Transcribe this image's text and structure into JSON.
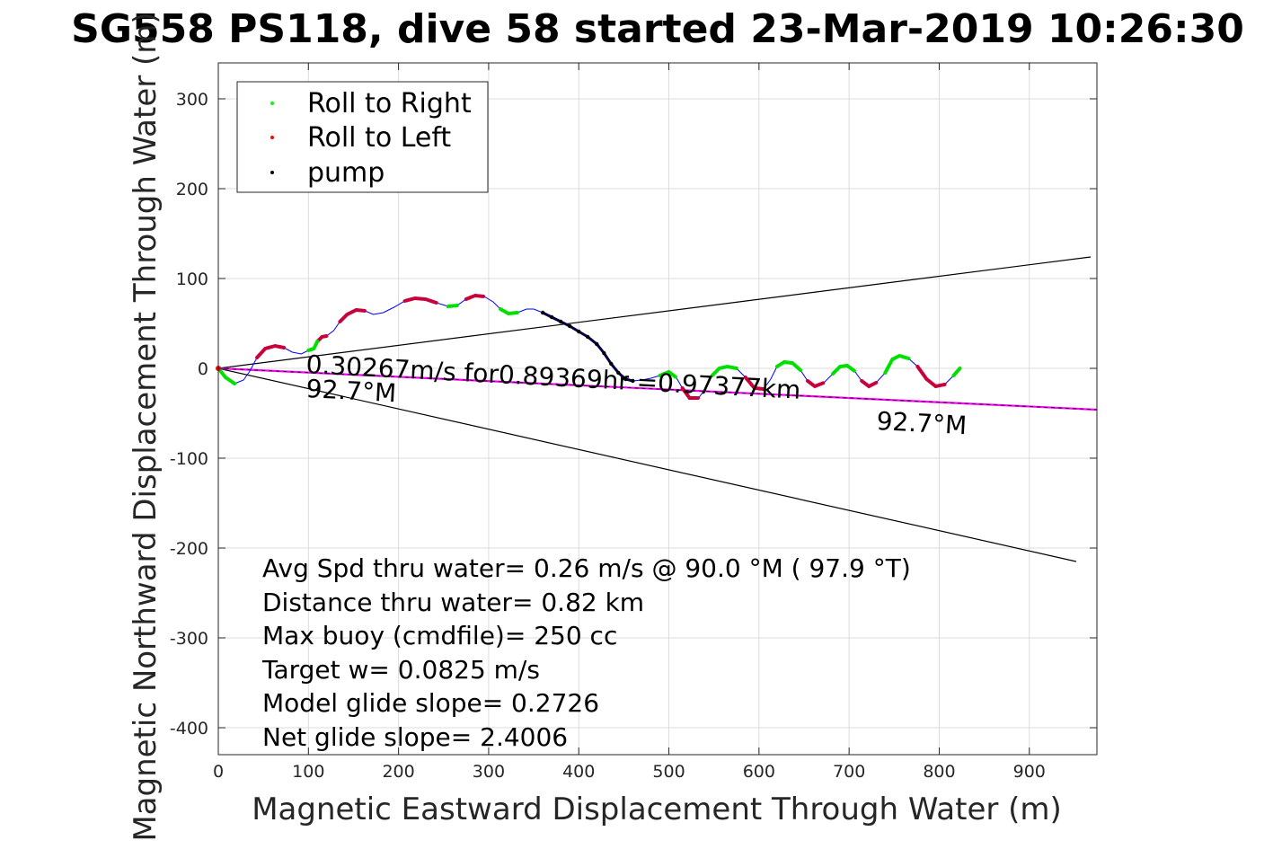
{
  "title": "SG558 PS118, dive 58 started 23-Mar-2019 10:26:30",
  "chart_data": {
    "type": "scatter",
    "title": "SG558 PS118, dive 58 started 23-Mar-2019 10:26:30",
    "xlabel": "Magnetic Eastward Displacement Through Water (m)",
    "ylabel": "Magnetic Northward Displacement Through Water (m)",
    "xlim": [
      0,
      975
    ],
    "ylim": [
      -430,
      340
    ],
    "xticks": [
      "0",
      "100",
      "200",
      "300",
      "400",
      "500",
      "600",
      "700",
      "800",
      "900"
    ],
    "yticks": [
      "300",
      "200",
      "100",
      "0",
      "-100",
      "-200",
      "-300",
      "-400"
    ],
    "grid": true,
    "legend_position": "top-left",
    "legend": [
      {
        "label": "Roll to Right",
        "color": "#00ff00"
      },
      {
        "label": "Roll to Left",
        "color": "#ff0000"
      },
      {
        "label": "pump",
        "color": "#000000"
      }
    ],
    "track_color": "#0000ff",
    "track_points": [
      [
        0,
        0
      ],
      [
        8,
        -10
      ],
      [
        18,
        -17
      ],
      [
        28,
        -13
      ],
      [
        35,
        -3
      ],
      [
        43,
        12
      ],
      [
        52,
        22
      ],
      [
        63,
        25
      ],
      [
        73,
        23
      ],
      [
        82,
        18
      ],
      [
        92,
        16
      ],
      [
        100,
        20
      ],
      [
        106,
        22
      ],
      [
        110,
        30
      ],
      [
        115,
        35
      ],
      [
        120,
        36
      ],
      [
        128,
        42
      ],
      [
        135,
        52
      ],
      [
        143,
        60
      ],
      [
        153,
        65
      ],
      [
        163,
        64
      ],
      [
        172,
        60
      ],
      [
        183,
        62
      ],
      [
        195,
        68
      ],
      [
        207,
        75
      ],
      [
        218,
        78
      ],
      [
        230,
        77
      ],
      [
        242,
        73
      ],
      [
        255,
        69
      ],
      [
        265,
        70
      ],
      [
        275,
        77
      ],
      [
        285,
        81
      ],
      [
        295,
        80
      ],
      [
        305,
        74
      ],
      [
        313,
        66
      ],
      [
        322,
        61
      ],
      [
        332,
        62
      ],
      [
        342,
        66
      ],
      [
        350,
        66
      ],
      [
        360,
        62
      ],
      [
        370,
        57
      ],
      [
        380,
        52
      ],
      [
        390,
        47
      ],
      [
        400,
        41
      ],
      [
        410,
        35
      ],
      [
        420,
        27
      ],
      [
        428,
        17
      ],
      [
        436,
        5
      ],
      [
        444,
        -5
      ],
      [
        452,
        -12
      ],
      [
        460,
        -14
      ],
      [
        470,
        -13
      ],
      [
        480,
        -11
      ],
      [
        490,
        -8
      ],
      [
        500,
        -4
      ],
      [
        508,
        -10
      ],
      [
        515,
        -22
      ],
      [
        523,
        -33
      ],
      [
        533,
        -33
      ],
      [
        541,
        -22
      ],
      [
        548,
        -8
      ],
      [
        556,
        0
      ],
      [
        565,
        2
      ],
      [
        575,
        0
      ],
      [
        585,
        -10
      ],
      [
        595,
        -22
      ],
      [
        605,
        -23
      ],
      [
        613,
        -12
      ],
      [
        620,
        2
      ],
      [
        628,
        7
      ],
      [
        637,
        6
      ],
      [
        646,
        -2
      ],
      [
        654,
        -14
      ],
      [
        662,
        -20
      ],
      [
        672,
        -16
      ],
      [
        682,
        -6
      ],
      [
        690,
        2
      ],
      [
        698,
        3
      ],
      [
        706,
        -3
      ],
      [
        714,
        -14
      ],
      [
        722,
        -20
      ],
      [
        730,
        -16
      ],
      [
        740,
        -5
      ],
      [
        748,
        10
      ],
      [
        756,
        14
      ],
      [
        766,
        11
      ],
      [
        776,
        2
      ],
      [
        786,
        -12
      ],
      [
        796,
        -20
      ],
      [
        806,
        -18
      ],
      [
        816,
        -8
      ],
      [
        823,
        0
      ]
    ],
    "roll_right_segments": [
      [
        [
          0,
          0
        ],
        [
          8,
          -10
        ],
        [
          18,
          -17
        ]
      ],
      [
        [
          100,
          20
        ],
        [
          106,
          22
        ],
        [
          110,
          30
        ]
      ],
      [
        [
          255,
          69
        ],
        [
          265,
          70
        ]
      ],
      [
        [
          313,
          66
        ],
        [
          322,
          61
        ],
        [
          332,
          62
        ]
      ],
      [
        [
          490,
          -8
        ],
        [
          500,
          -4
        ],
        [
          508,
          -10
        ]
      ],
      [
        [
          548,
          -8
        ],
        [
          556,
          0
        ],
        [
          565,
          2
        ],
        [
          575,
          0
        ]
      ],
      [
        [
          620,
          2
        ],
        [
          628,
          7
        ],
        [
          637,
          6
        ],
        [
          646,
          -2
        ]
      ],
      [
        [
          682,
          -6
        ],
        [
          690,
          2
        ],
        [
          698,
          3
        ],
        [
          706,
          -3
        ]
      ],
      [
        [
          740,
          -5
        ],
        [
          748,
          10
        ],
        [
          756,
          14
        ],
        [
          766,
          11
        ]
      ],
      [
        [
          816,
          -8
        ],
        [
          823,
          0
        ]
      ]
    ],
    "roll_left_segments": [
      [
        [
          43,
          12
        ],
        [
          52,
          22
        ],
        [
          63,
          25
        ],
        [
          73,
          23
        ]
      ],
      [
        [
          110,
          30
        ],
        [
          115,
          35
        ],
        [
          120,
          36
        ]
      ],
      [
        [
          135,
          52
        ],
        [
          143,
          60
        ],
        [
          153,
          65
        ],
        [
          163,
          64
        ]
      ],
      [
        [
          207,
          75
        ],
        [
          218,
          78
        ],
        [
          230,
          77
        ],
        [
          242,
          73
        ]
      ],
      [
        [
          275,
          77
        ],
        [
          285,
          81
        ],
        [
          295,
          80
        ]
      ],
      [
        [
          515,
          -22
        ],
        [
          523,
          -33
        ],
        [
          533,
          -33
        ]
      ],
      [
        [
          585,
          -10
        ],
        [
          595,
          -22
        ],
        [
          605,
          -23
        ]
      ],
      [
        [
          654,
          -14
        ],
        [
          662,
          -20
        ],
        [
          672,
          -16
        ]
      ],
      [
        [
          714,
          -14
        ],
        [
          722,
          -20
        ],
        [
          730,
          -16
        ]
      ],
      [
        [
          776,
          2
        ],
        [
          786,
          -12
        ],
        [
          796,
          -20
        ],
        [
          806,
          -18
        ]
      ]
    ],
    "pump_segment": [
      [
        360,
        62
      ],
      [
        370,
        57
      ],
      [
        380,
        52
      ],
      [
        390,
        47
      ],
      [
        400,
        41
      ],
      [
        410,
        35
      ],
      [
        420,
        27
      ],
      [
        428,
        17
      ],
      [
        436,
        5
      ],
      [
        444,
        -5
      ],
      [
        452,
        -12
      ],
      [
        460,
        -14
      ]
    ],
    "reference_lines": [
      {
        "name": "upper",
        "color": "#000000",
        "points": [
          [
            0,
            0
          ],
          [
            968,
            124
          ]
        ]
      },
      {
        "name": "lower",
        "color": "#000000",
        "points": [
          [
            0,
            0
          ],
          [
            952,
            -215
          ]
        ]
      },
      {
        "name": "heading",
        "color": "#ff00ff",
        "points": [
          [
            0,
            0
          ],
          [
            975,
            -46
          ]
        ]
      },
      {
        "name": "heading-overlay",
        "color": "#000000",
        "points": [
          [
            0,
            0
          ],
          [
            975,
            -46
          ]
        ]
      }
    ],
    "annotations": [
      {
        "id": "speed",
        "text": "0.30267m/s for0.89369hr =0.97377km",
        "x": 97,
        "y": -5,
        "rotate": 3
      },
      {
        "id": "heading-near",
        "text": "92.7°M",
        "x": 97,
        "y": -32,
        "rotate": 3
      },
      {
        "id": "heading-far",
        "text": "92.7°M",
        "x": 730,
        "y": -68,
        "rotate": 3
      }
    ],
    "stats": [
      "Avg Spd thru water=  0.26 m/s @  90.0 °M ( 97.9 °T)",
      "Distance thru water=  0.82 km",
      "Max buoy (cmdfile)= 250 cc",
      "Target w= 0.0825 m/s",
      "Model glide slope= 0.2726",
      "Net glide slope= 2.4006"
    ]
  }
}
